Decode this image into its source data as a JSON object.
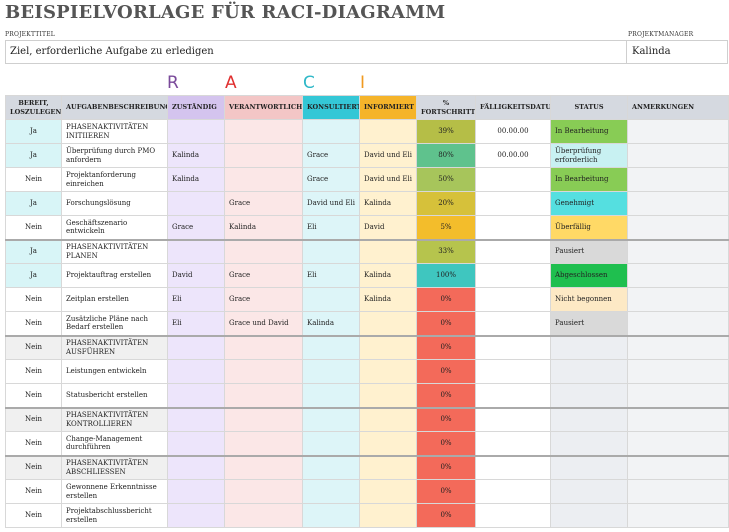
{
  "title": "BEISPIELVORLAGE FÜR RACI-DIAGRAMM",
  "labels": {
    "project_title": "PROJEKTTITEL",
    "project_manager": "PROJEKTMANAGER"
  },
  "project": {
    "goal": "Ziel, erforderliche Aufgabe zu erledigen",
    "manager": "Kalinda"
  },
  "raci_letters": [
    "R",
    "A",
    "C",
    "I"
  ],
  "colors": {
    "progress": {
      "39": "#b5be47",
      "80": "#5fc28d",
      "50": "#a7c55b",
      "20": "#d6c13a",
      "5": "#f3bd2b",
      "33": "#b6c44d",
      "100": "#3fc6bf",
      "0": "#f36a5a"
    },
    "status": {
      "In Bearbeitung": "#88cc55",
      "Überprüfung erforderlich": "#c8f1f2",
      "Genehmigt": "#55dfe0",
      "Überfällig": "#ffd966",
      "Pausiert": "#d9d9d9",
      "Abgeschlossen": "#1fbf4f",
      "Nicht begonnen": "#fde9c5"
    }
  },
  "headers": {
    "ready": "BEREIT, LOSZULEGEN?",
    "desc": "AUFGABENBESCHREIBUNG",
    "zust": "ZUSTÄNDIG",
    "verant": "VERANTWORTLICH",
    "konsul": "KONSULTIERT",
    "inf": "INFORMIERT",
    "fort": "% FORTSCHRITT",
    "due": "FÄLLIGKEITSDATUM",
    "status": "STATUS",
    "notes": "ANMERKUNGEN"
  },
  "rows": [
    {
      "ready": "Ja",
      "desc": "PHASENAKTIVITÄTEN INITIIEREN",
      "zust": "",
      "verant": "",
      "konsul": "",
      "inf": "",
      "pct": "39%",
      "pctKey": "39",
      "due": "00.00.00",
      "status": "In Bearbeitung",
      "notes": "",
      "phase": true,
      "cyan": true
    },
    {
      "ready": "Ja",
      "desc": "Überprüfung durch PMO anfordern",
      "zust": "Kalinda",
      "verant": "",
      "konsul": "Grace",
      "inf": "David und Eli",
      "pct": "80%",
      "pctKey": "80",
      "due": "00.00.00",
      "status": "Überprüfung erforderlich",
      "notes": "",
      "phase": false,
      "cyan": true
    },
    {
      "ready": "Nein",
      "desc": "Projektanforderung einreichen",
      "zust": "Kalinda",
      "verant": "",
      "konsul": "Grace",
      "inf": "David und Eli",
      "pct": "50%",
      "pctKey": "50",
      "due": "",
      "status": "In Bearbeitung",
      "notes": "",
      "phase": false,
      "cyan": false
    },
    {
      "ready": "Ja",
      "desc": "Forschungslösung",
      "zust": "",
      "verant": "Grace",
      "konsul": "David und Eli",
      "inf": "Kalinda",
      "pct": "20%",
      "pctKey": "20",
      "due": "",
      "status": "Genehmigt",
      "notes": "",
      "phase": false,
      "cyan": true
    },
    {
      "ready": "Nein",
      "desc": "Geschäftszenario entwickeln",
      "zust": "Grace",
      "verant": "Kalinda",
      "konsul": "Eli",
      "inf": "David",
      "pct": "5%",
      "pctKey": "5",
      "due": "",
      "status": "Überfällig",
      "notes": "",
      "phase": false,
      "cyan": false
    },
    {
      "ready": "Ja",
      "desc": "PHASENAKTIVITÄTEN PLANEN",
      "zust": "",
      "verant": "",
      "konsul": "",
      "inf": "",
      "pct": "33%",
      "pctKey": "33",
      "due": "",
      "status": "Pausiert",
      "notes": "",
      "phase": true,
      "cyan": true
    },
    {
      "ready": "Ja",
      "desc": "Projektauftrag erstellen",
      "zust": "David",
      "verant": "Grace",
      "konsul": "Eli",
      "inf": "Kalinda",
      "pct": "100%",
      "pctKey": "100",
      "due": "",
      "status": "Abgeschlossen",
      "notes": "",
      "phase": false,
      "cyan": true
    },
    {
      "ready": "Nein",
      "desc": "Zeitplan erstellen",
      "zust": "Eli",
      "verant": "Grace",
      "konsul": "",
      "inf": "Kalinda",
      "pct": "0%",
      "pctKey": "0",
      "due": "",
      "status": "Nicht begonnen",
      "notes": "",
      "phase": false,
      "cyan": false
    },
    {
      "ready": "Nein",
      "desc": "Zusätzliche Pläne nach Bedarf erstellen",
      "zust": "Eli",
      "verant": "Grace und David",
      "konsul": "Kalinda",
      "inf": "",
      "pct": "0%",
      "pctKey": "0",
      "due": "",
      "status": "Pausiert",
      "notes": "",
      "phase": false,
      "cyan": false
    },
    {
      "ready": "Nein",
      "desc": "PHASENAKTIVITÄTEN AUSFÜHREN",
      "zust": "",
      "verant": "",
      "konsul": "",
      "inf": "",
      "pct": "0%",
      "pctKey": "0",
      "due": "",
      "status": "",
      "notes": "",
      "phase": true,
      "cyan": false
    },
    {
      "ready": "Nein",
      "desc": "Leistungen entwickeln",
      "zust": "",
      "verant": "",
      "konsul": "",
      "inf": "",
      "pct": "0%",
      "pctKey": "0",
      "due": "",
      "status": "",
      "notes": "",
      "phase": false,
      "cyan": false
    },
    {
      "ready": "Nein",
      "desc": "Statusbericht erstellen",
      "zust": "",
      "verant": "",
      "konsul": "",
      "inf": "",
      "pct": "0%",
      "pctKey": "0",
      "due": "",
      "status": "",
      "notes": "",
      "phase": false,
      "cyan": false
    },
    {
      "ready": "Nein",
      "desc": "PHASENAKTIVITÄTEN KONTROLLIEREN",
      "zust": "",
      "verant": "",
      "konsul": "",
      "inf": "",
      "pct": "0%",
      "pctKey": "0",
      "due": "",
      "status": "",
      "notes": "",
      "phase": true,
      "cyan": false
    },
    {
      "ready": "Nein",
      "desc": "Change-Management durchführen",
      "zust": "",
      "verant": "",
      "konsul": "",
      "inf": "",
      "pct": "0%",
      "pctKey": "0",
      "due": "",
      "status": "",
      "notes": "",
      "phase": false,
      "cyan": false
    },
    {
      "ready": "Nein",
      "desc": "PHASENAKTIVITÄTEN ABSCHLIESSEN",
      "zust": "",
      "verant": "",
      "konsul": "",
      "inf": "",
      "pct": "0%",
      "pctKey": "0",
      "due": "",
      "status": "",
      "notes": "",
      "phase": true,
      "cyan": false
    },
    {
      "ready": "Nein",
      "desc": "Gewonnene Erkenntnisse erstellen",
      "zust": "",
      "verant": "",
      "konsul": "",
      "inf": "",
      "pct": "0%",
      "pctKey": "0",
      "due": "",
      "status": "",
      "notes": "",
      "phase": false,
      "cyan": false
    },
    {
      "ready": "Nein",
      "desc": "Projektabschlussbericht erstellen",
      "zust": "",
      "verant": "",
      "konsul": "",
      "inf": "",
      "pct": "0%",
      "pctKey": "0",
      "due": "",
      "status": "",
      "notes": "",
      "phase": false,
      "cyan": false
    }
  ]
}
